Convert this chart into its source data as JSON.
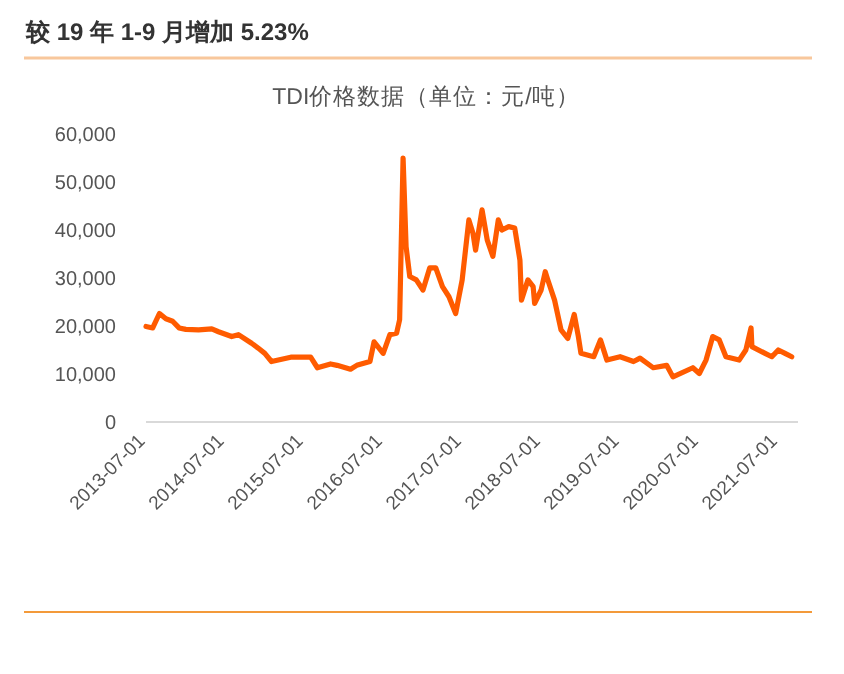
{
  "chart_data": {
    "type": "line",
    "title": "较 19 年 1-9 月增加 5.23%",
    "subtitle": "TDI价格数据（单位：元/吨）",
    "x": [
      "2013-07",
      "2013-08",
      "2013-09",
      "2013-10",
      "2013-11",
      "2013-12",
      "2014-01",
      "2014-03",
      "2014-05",
      "2014-06",
      "2014-08",
      "2014-09",
      "2014-11",
      "2014-12",
      "2015-01",
      "2015-02",
      "2015-05",
      "2015-08",
      "2015-09",
      "2015-11",
      "2015-12",
      "2016-02",
      "2016-03",
      "2016-05",
      "2016-05-20",
      "2016-07",
      "2016-08",
      "2016-09",
      "2016-09-15",
      "2016-10",
      "2016-10-15",
      "2016-11",
      "2016-12",
      "2017-01",
      "2017-02",
      "2017-03",
      "2017-04",
      "2017-05",
      "2017-06",
      "2017-07",
      "2017-08",
      "2017-08-20",
      "2017-09",
      "2017-10",
      "2017-10-25",
      "2017-11-20",
      "2017-12-15",
      "2018-01",
      "2018-02",
      "2018-03",
      "2018-03-25",
      "2018-04",
      "2018-05",
      "2018-05-25",
      "2018-06",
      "2018-07",
      "2018-07-20",
      "2018-08",
      "2018-09",
      "2018-10",
      "2018-11",
      "2018-12",
      "2018-12-20",
      "2019-01",
      "2019-03",
      "2019-04",
      "2019-05",
      "2019-07",
      "2019-09",
      "2019-10",
      "2019-12",
      "2020-02",
      "2020-03",
      "2020-06",
      "2020-07",
      "2020-08",
      "2020-09",
      "2020-10",
      "2020-11",
      "2021-01",
      "2021-02",
      "2021-02-25",
      "2021-03",
      "2021-05",
      "2021-06",
      "2021-07",
      "2021-08",
      "2021-09"
    ],
    "series": [
      {
        "color": "#ff5b00",
        "values": [
          19900,
          19600,
          22600,
          21500,
          21000,
          19600,
          19300,
          19200,
          19400,
          18800,
          17800,
          18200,
          16400,
          15400,
          14300,
          12600,
          13500,
          13500,
          11300,
          12100,
          11800,
          11000,
          11800,
          12600,
          16700,
          14300,
          18200,
          18500,
          21300,
          55000,
          36500,
          30300,
          29600,
          27500,
          32100,
          32100,
          28200,
          26100,
          22600,
          29600,
          42100,
          39300,
          35800,
          44200,
          37900,
          34500,
          42100,
          40000,
          40700,
          40400,
          33700,
          25400,
          29600,
          28200,
          24700,
          27500,
          31300,
          29600,
          25400,
          19200,
          17400,
          22400,
          17800,
          14300,
          13600,
          17100,
          12900,
          13600,
          12600,
          13300,
          11300,
          11800,
          9400,
          11300,
          10100,
          12900,
          17800,
          17100,
          13600,
          12900,
          15000,
          19600,
          15700,
          14300,
          13600,
          15000,
          14300,
          13600
        ]
      }
    ],
    "xlim": [
      "2013-07-01",
      "2021-09-30"
    ],
    "xticks": [
      "2013-07-01",
      "2014-07-01",
      "2015-07-01",
      "2016-07-01",
      "2017-07-01",
      "2018-07-01",
      "2019-07-01",
      "2020-07-01",
      "2021-07-01"
    ],
    "ylim": [
      0,
      60000
    ],
    "yticks": [
      0,
      {
        "value": 10000,
        "label": "10,000"
      },
      {
        "value": 20000,
        "label": "20,000"
      },
      {
        "value": 30000,
        "label": "30,000"
      },
      {
        "value": 40000,
        "label": "40,000"
      },
      {
        "value": 50000,
        "label": "50,000"
      },
      {
        "value": 60000,
        "label": "60,000"
      }
    ],
    "grid": false,
    "marker": "none",
    "line_style": "solid"
  }
}
